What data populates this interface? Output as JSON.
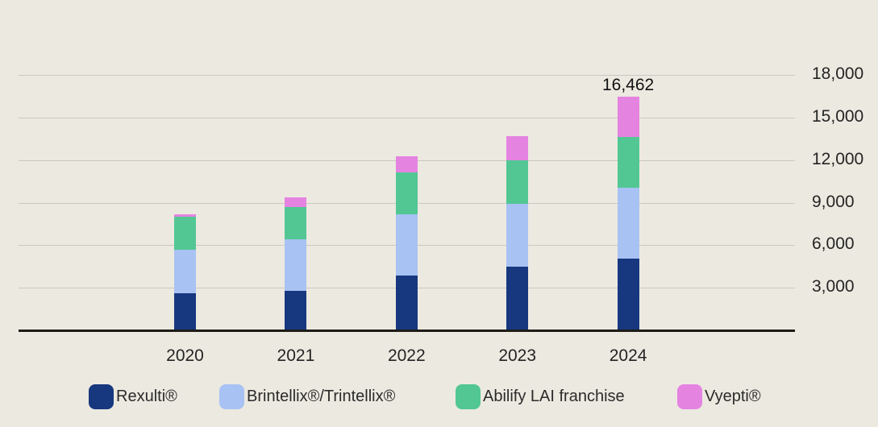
{
  "colors": {
    "background": "#ECE9E0",
    "gridline": "#CBC8BF",
    "axis_line": "#1E1C18",
    "text": "#242424"
  },
  "chart_data": {
    "type": "bar",
    "stacked": true,
    "title": "",
    "xlabel": "",
    "ylabel": "",
    "categories": [
      "2020",
      "2021",
      "2022",
      "2023",
      "2024"
    ],
    "series": [
      {
        "name": "Rexulti®",
        "color": "#17387F",
        "values": [
          2590,
          2780,
          3850,
          4480,
          5055
        ]
      },
      {
        "name": "Brintellix®/Trintellix®",
        "color": "#A8C2F4",
        "values": [
          3115,
          3630,
          4310,
          4420,
          4968
        ]
      },
      {
        "name": "Abilify LAI franchise",
        "color": "#52C794",
        "values": [
          2325,
          2260,
          2990,
          3110,
          3594
        ]
      },
      {
        "name": "Vyepti®",
        "color": "#E583E1",
        "values": [
          170,
          680,
          1130,
          1700,
          2845
        ]
      }
    ],
    "ytick_values": [
      18000,
      15000,
      12000,
      9000,
      6000,
      3000
    ],
    "ytick_labels": [
      "18,000",
      "15,000",
      "12,000",
      "9,000",
      "6,000",
      "3,000"
    ],
    "ylim": [
      0,
      18000
    ],
    "grid": true,
    "legend_position": "bottom",
    "total_label": {
      "category": "2024",
      "category_index": 4,
      "text": "16,462",
      "value": 16462
    }
  }
}
